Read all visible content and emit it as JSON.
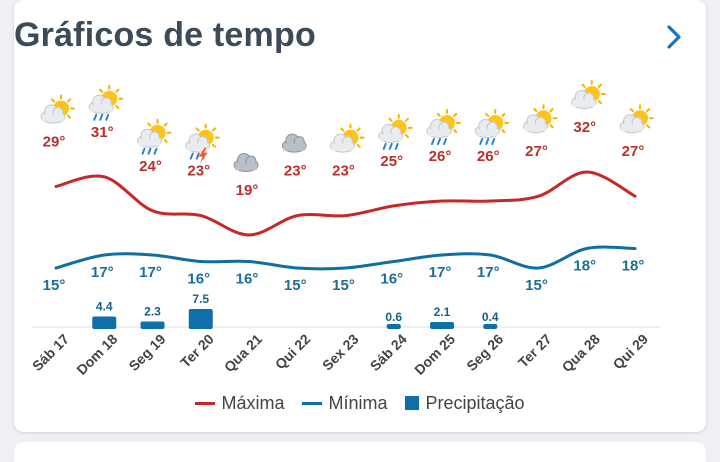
{
  "header": {
    "title": "Gráficos de tempo"
  },
  "colors": {
    "max_line": "#c62828",
    "min_line": "#0e6fa0",
    "max_text": "#b9302c",
    "min_text": "#1a6f9a",
    "precip": "#0f6fa8",
    "axis_text": "#444444"
  },
  "legend": {
    "max_label": "Máxima",
    "min_label": "Mínima",
    "precip_label": "Precipitação"
  },
  "chart_data": {
    "type": "line",
    "categories": [
      "Sáb 17",
      "Dom 18",
      "Seg 19",
      "Ter 20",
      "Qua 21",
      "Qui 22",
      "Sex 23",
      "Sáb 24",
      "Dom 25",
      "Seg 26",
      "Ter 27",
      "Qua 28",
      "Qui 29"
    ],
    "series": [
      {
        "name": "Máxima",
        "values": [
          29,
          31,
          24,
          23,
          19,
          23,
          23,
          25,
          26,
          26,
          27,
          32,
          27
        ],
        "labels": [
          "29°",
          "31°",
          "24°",
          "23°",
          "19°",
          "23°",
          "23°",
          "25°",
          "26°",
          "26°",
          "27°",
          "32°",
          "27°"
        ]
      },
      {
        "name": "Mínima",
        "values": [
          15,
          17,
          17,
          16,
          16,
          15,
          15,
          16,
          17,
          17,
          15,
          18,
          18
        ],
        "labels": [
          "15°",
          "17°",
          "17°",
          "16°",
          "16°",
          "15°",
          "15°",
          "16°",
          "17°",
          "17°",
          "15°",
          "18°",
          "18°"
        ]
      },
      {
        "name": "Precipitação",
        "values": [
          0,
          4.4,
          2.3,
          7.5,
          0,
          0,
          0,
          0.6,
          2.1,
          0.4,
          0,
          0,
          0
        ],
        "labels": [
          "",
          "4.4",
          "2.3",
          "7.5",
          "",
          "",
          "",
          "0.6",
          "2.1",
          "0.4",
          "",
          "",
          ""
        ]
      }
    ],
    "icons": [
      "sun-cloud-icon",
      "sun-cloud-rain-icon",
      "sun-cloud-rain-icon",
      "sun-cloud-storm-icon",
      "cloud-icon",
      "cloud-icon",
      "sun-cloud-icon",
      "sun-cloud-rain-icon",
      "sun-cloud-rain-icon",
      "sun-cloud-rain-icon",
      "sun-cloud-icon",
      "sun-cloud-icon",
      "sun-cloud-icon"
    ],
    "legend_position": "bottom-center",
    "grid": false
  }
}
